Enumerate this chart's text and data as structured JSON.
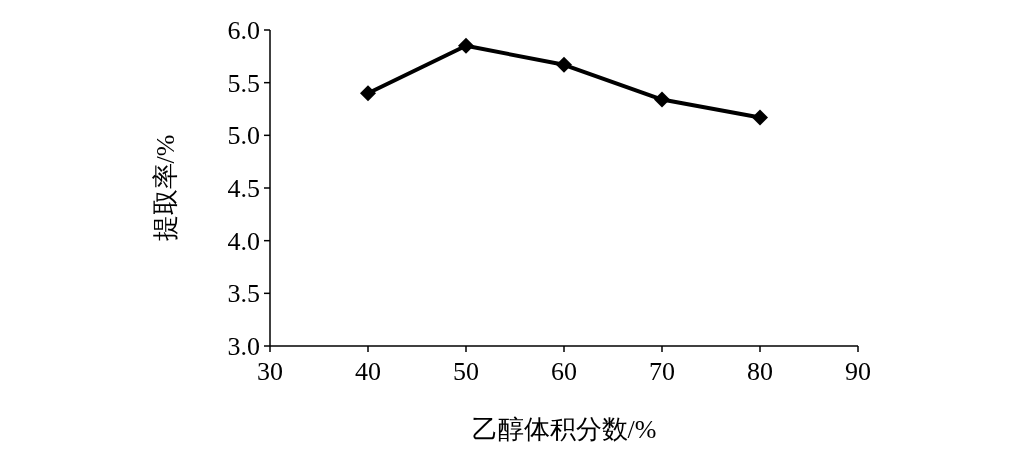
{
  "chart_data": {
    "type": "line",
    "xlabel": "乙醇体积分数/%",
    "ylabel": "提取率/%",
    "x": [
      40,
      50,
      60,
      70,
      80
    ],
    "series": [
      {
        "color": "#000000",
        "values": [
          5.4,
          5.85,
          5.67,
          5.34,
          5.17
        ]
      }
    ],
    "xlim": [
      30,
      90
    ],
    "xticks": [
      30,
      40,
      50,
      60,
      70,
      80,
      90
    ],
    "ylim": [
      3,
      6
    ],
    "yticks": [
      {
        "value": 3,
        "label": "3.0"
      },
      {
        "value": 3.5,
        "label": "3.5"
      },
      {
        "value": 4,
        "label": "4.0"
      },
      {
        "value": 4.5,
        "label": "4.5"
      },
      {
        "value": 5,
        "label": "5.0"
      },
      {
        "value": 5.5,
        "label": "5.5"
      },
      {
        "value": 6,
        "label": "6.0"
      }
    ],
    "marker": "diamond",
    "line_style": "solid",
    "grid": false
  }
}
